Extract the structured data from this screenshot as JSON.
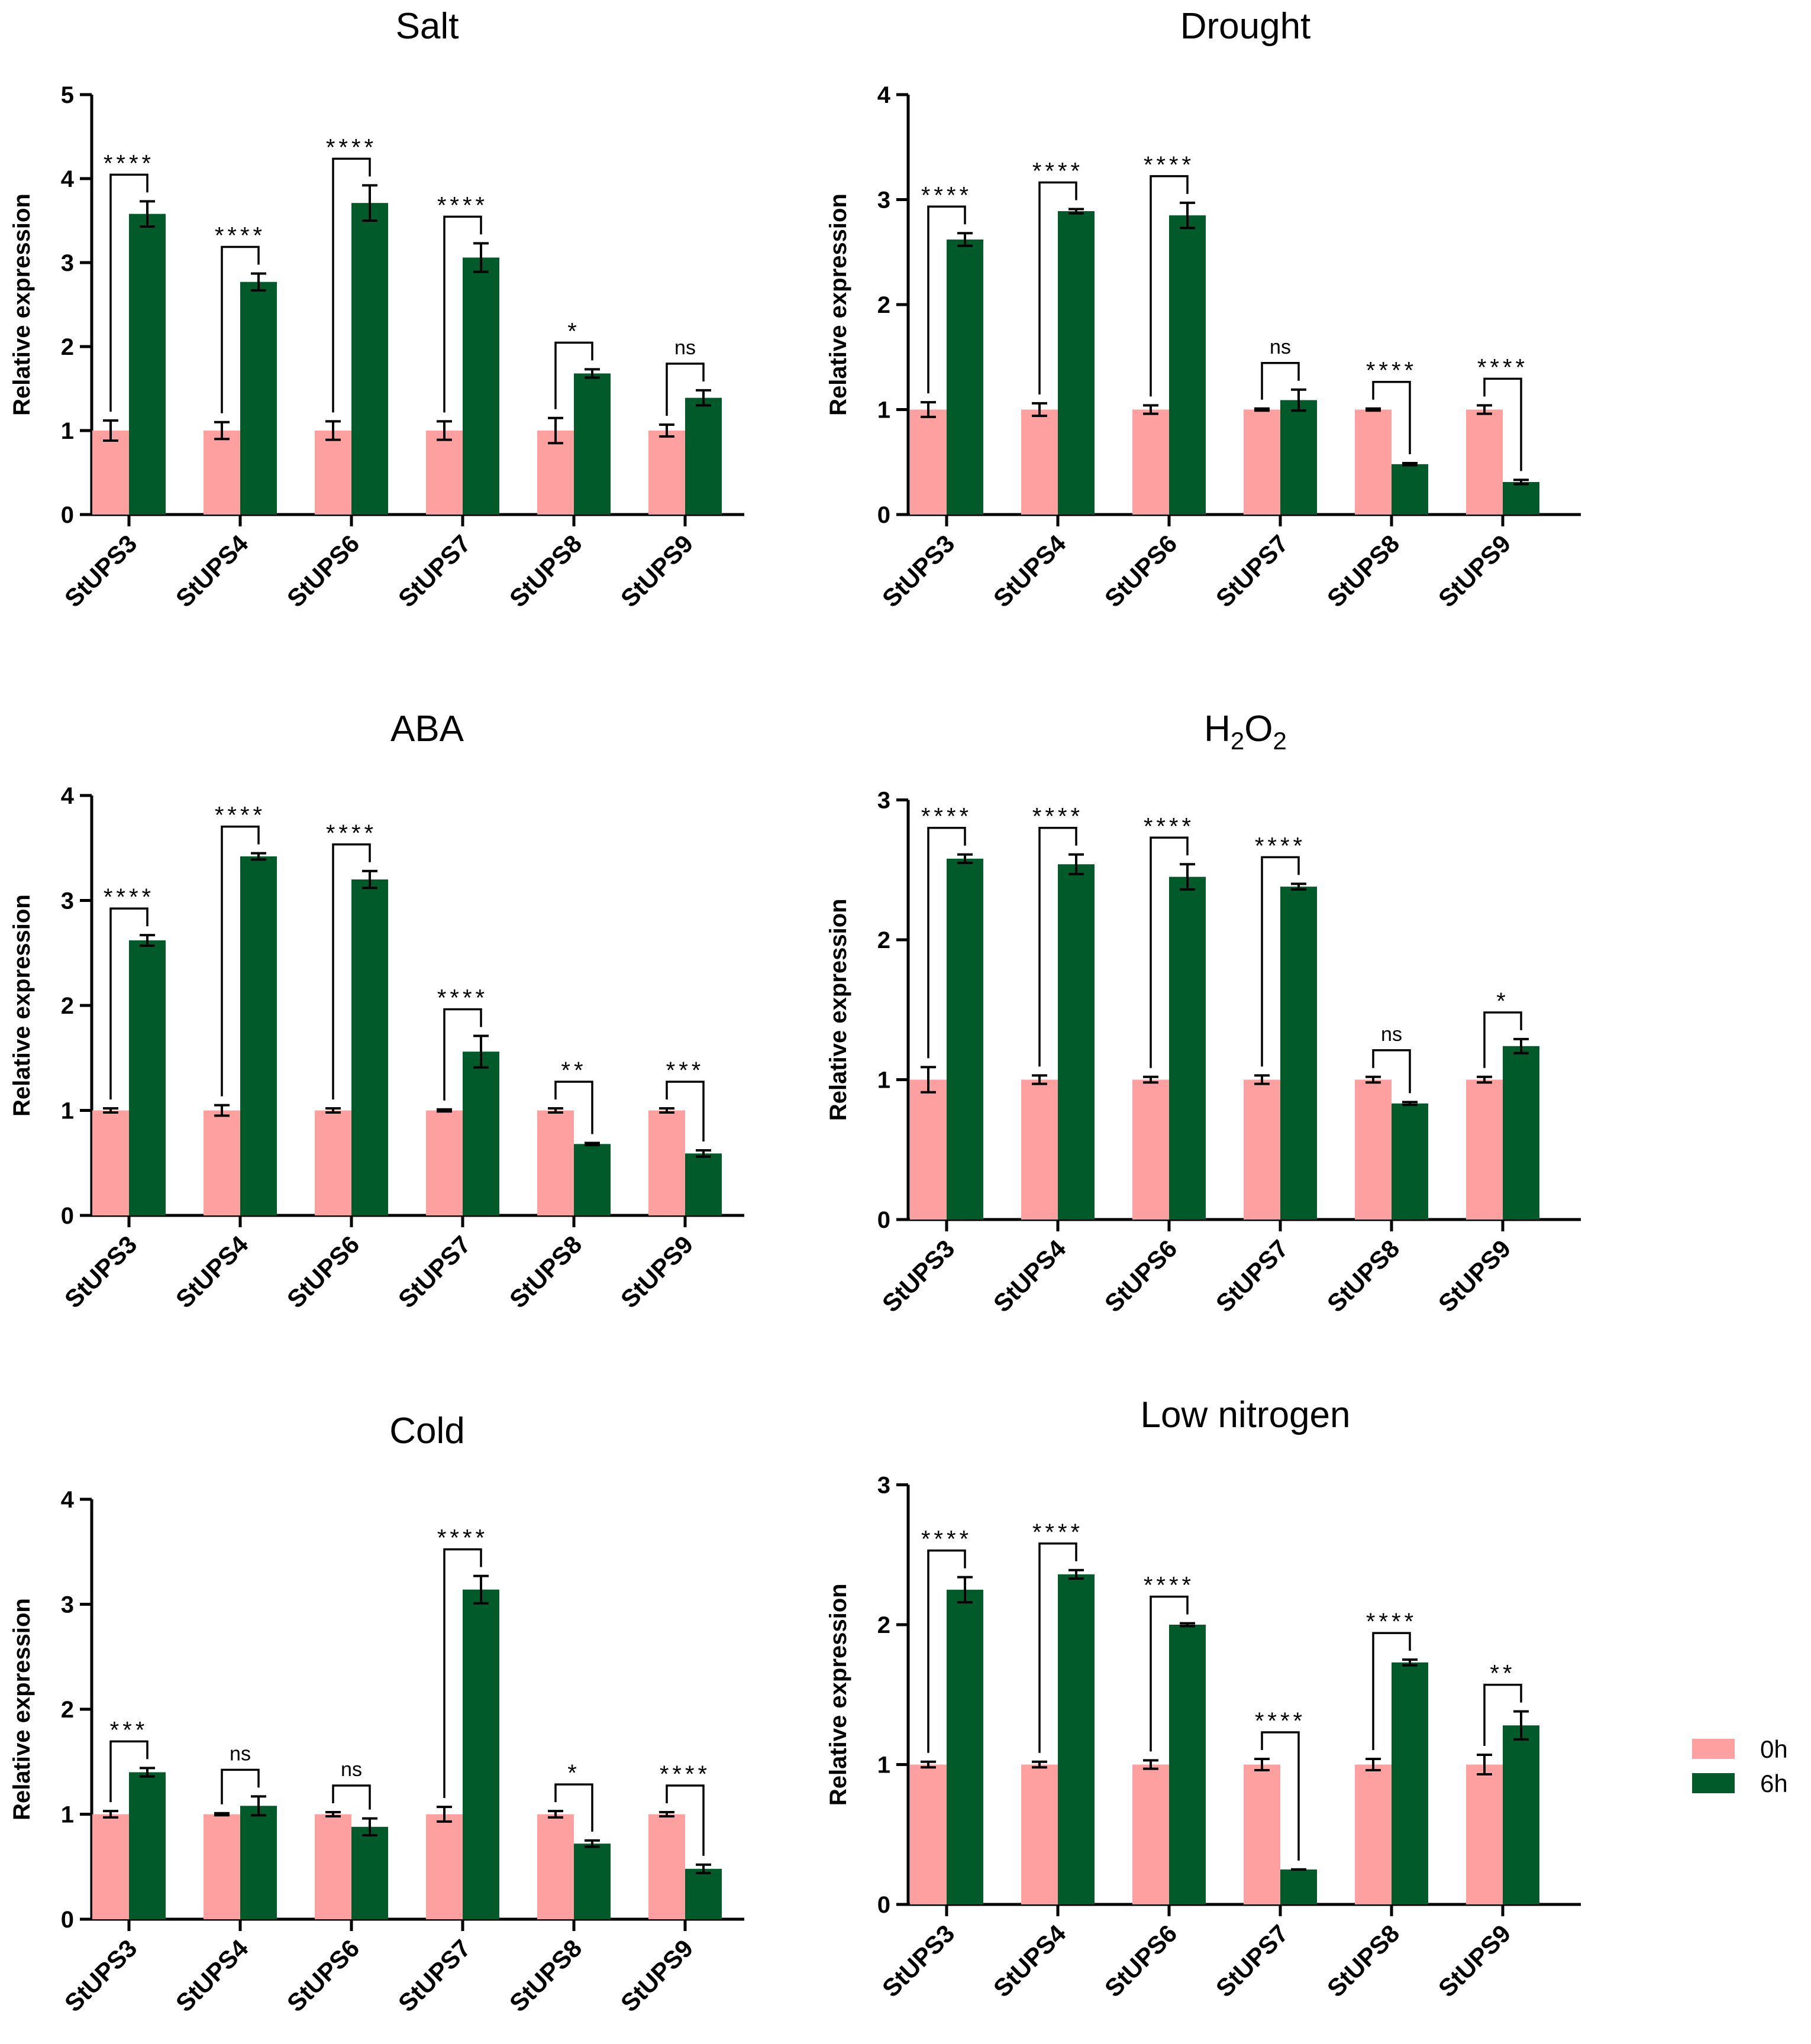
{
  "colors": {
    "h0": "#FFA0A0",
    "h6": "#005A2A",
    "axis": "#000000"
  },
  "legend": {
    "items": [
      {
        "label": "0h",
        "color": "#FFA0A0"
      },
      {
        "label": "6h",
        "color": "#005A2A"
      }
    ]
  },
  "chart_data": [
    {
      "type": "bar",
      "title": "Salt",
      "ylabel": "Relative expression",
      "ylim": [
        0,
        5
      ],
      "yticks": [
        0,
        1,
        2,
        3,
        4,
        5
      ],
      "categories": [
        "StUPS3",
        "StUPS4",
        "StUPS6",
        "StUPS7",
        "StUPS8",
        "StUPS9"
      ],
      "series": [
        {
          "name": "0h",
          "values": [
            1.0,
            1.0,
            1.0,
            1.0,
            1.0,
            1.0
          ],
          "errors": [
            0.12,
            0.1,
            0.11,
            0.11,
            0.15,
            0.07
          ]
        },
        {
          "name": "6h",
          "values": [
            3.58,
            2.77,
            3.71,
            3.06,
            1.68,
            1.39
          ],
          "errors": [
            0.15,
            0.1,
            0.21,
            0.17,
            0.05,
            0.09
          ]
        }
      ],
      "significance": [
        "****",
        "****",
        "****",
        "****",
        "*",
        "ns"
      ]
    },
    {
      "type": "bar",
      "title": "Drought",
      "ylabel": "Relative expression",
      "ylim": [
        0,
        4
      ],
      "yticks": [
        0,
        1,
        2,
        3,
        4
      ],
      "categories": [
        "StUPS3",
        "StUPS4",
        "StUPS6",
        "StUPS7",
        "StUPS8",
        "StUPS9"
      ],
      "series": [
        {
          "name": "0h",
          "values": [
            1.0,
            1.0,
            1.0,
            1.0,
            1.0,
            1.0
          ],
          "errors": [
            0.07,
            0.06,
            0.04,
            0.01,
            0.01,
            0.04
          ]
        },
        {
          "name": "6h",
          "values": [
            2.62,
            2.89,
            2.85,
            1.09,
            0.48,
            0.31
          ],
          "errors": [
            0.06,
            0.02,
            0.12,
            0.1,
            0.01,
            0.02
          ]
        }
      ],
      "significance": [
        "****",
        "****",
        "****",
        "ns",
        "****",
        "****"
      ]
    },
    {
      "type": "bar",
      "title": "ABA",
      "ylabel": "Relative expression",
      "ylim": [
        0,
        4
      ],
      "yticks": [
        0,
        1,
        2,
        3,
        4
      ],
      "categories": [
        "StUPS3",
        "StUPS4",
        "StUPS6",
        "StUPS7",
        "StUPS8",
        "StUPS9"
      ],
      "series": [
        {
          "name": "0h",
          "values": [
            1.0,
            1.0,
            1.0,
            1.0,
            1.0,
            1.0
          ],
          "errors": [
            0.02,
            0.05,
            0.02,
            0.01,
            0.02,
            0.02
          ]
        },
        {
          "name": "6h",
          "values": [
            2.62,
            3.42,
            3.2,
            1.56,
            0.68,
            0.59
          ],
          "errors": [
            0.05,
            0.03,
            0.08,
            0.15,
            0.01,
            0.03
          ]
        }
      ],
      "significance": [
        "****",
        "****",
        "****",
        "****",
        "**",
        "***"
      ]
    },
    {
      "type": "bar",
      "title": "H2O2",
      "title_parts": {
        "main": "H",
        "sub1": "2",
        "mid": "O",
        "sub2": "2"
      },
      "ylabel": "Relative expression",
      "ylim": [
        0,
        3
      ],
      "yticks": [
        0,
        1,
        2,
        3
      ],
      "categories": [
        "StUPS3",
        "StUPS4",
        "StUPS6",
        "StUPS7",
        "StUPS8",
        "StUPS9"
      ],
      "series": [
        {
          "name": "0h",
          "values": [
            1.0,
            1.0,
            1.0,
            1.0,
            1.0,
            1.0
          ],
          "errors": [
            0.09,
            0.03,
            0.02,
            0.03,
            0.02,
            0.02
          ]
        },
        {
          "name": "6h",
          "values": [
            2.58,
            2.54,
            2.45,
            2.38,
            0.83,
            1.24
          ],
          "errors": [
            0.03,
            0.07,
            0.09,
            0.02,
            0.01,
            0.05
          ]
        }
      ],
      "significance": [
        "****",
        "****",
        "****",
        "****",
        "ns",
        "*"
      ]
    },
    {
      "type": "bar",
      "title": "Cold",
      "ylabel": "Relative expression",
      "ylim": [
        0,
        4
      ],
      "yticks": [
        0,
        1,
        2,
        3,
        4
      ],
      "categories": [
        "StUPS3",
        "StUPS4",
        "StUPS6",
        "StUPS7",
        "StUPS8",
        "StUPS9"
      ],
      "series": [
        {
          "name": "0h",
          "values": [
            1.0,
            1.0,
            1.0,
            1.0,
            1.0,
            1.0
          ],
          "errors": [
            0.03,
            0.01,
            0.02,
            0.07,
            0.03,
            0.02
          ]
        },
        {
          "name": "6h",
          "values": [
            1.4,
            1.08,
            0.88,
            3.14,
            0.72,
            0.48
          ],
          "errors": [
            0.04,
            0.09,
            0.08,
            0.13,
            0.03,
            0.04
          ]
        }
      ],
      "significance": [
        "***",
        "ns",
        "ns",
        "****",
        "*",
        "****"
      ]
    },
    {
      "type": "bar",
      "title": "Low nitrogen",
      "ylabel": "Relative expression",
      "ylim": [
        0,
        3
      ],
      "yticks": [
        0,
        1,
        2,
        3
      ],
      "categories": [
        "StUPS3",
        "StUPS4",
        "StUPS6",
        "StUPS7",
        "StUPS8",
        "StUPS9"
      ],
      "series": [
        {
          "name": "0h",
          "values": [
            1.0,
            1.0,
            1.0,
            1.0,
            1.0,
            1.0
          ],
          "errors": [
            0.02,
            0.02,
            0.03,
            0.04,
            0.04,
            0.07
          ]
        },
        {
          "name": "6h",
          "values": [
            2.25,
            2.36,
            2.0,
            0.25,
            1.73,
            1.28
          ],
          "errors": [
            0.09,
            0.03,
            0.01,
            0.0,
            0.02,
            0.1
          ]
        }
      ],
      "significance": [
        "****",
        "****",
        "****",
        "****",
        "****",
        "**"
      ]
    }
  ]
}
